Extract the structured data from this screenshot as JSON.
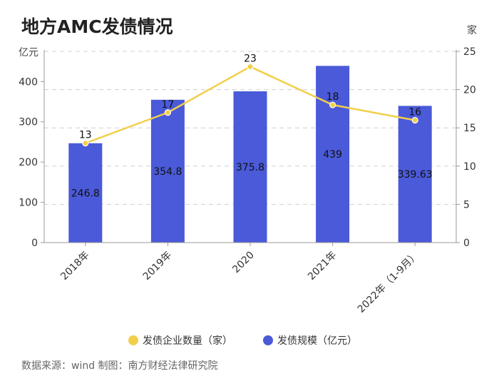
{
  "title": "地方AMC发债情况",
  "source": "数据来源：wind 制图：南方财经法律研究院",
  "chart_data": {
    "type": "bar",
    "categories": [
      "2018年",
      "2019年",
      "2020",
      "2021年",
      "2022年（1-9月）"
    ],
    "series": [
      {
        "name": "发债规模（亿元）",
        "type": "bar",
        "axis": "left",
        "values": [
          246.8,
          354.8,
          375.8,
          439,
          339.63
        ],
        "labels": [
          "246.8",
          "354.8",
          "375.8",
          "439",
          "339.63"
        ],
        "color": "#4a5ad8"
      },
      {
        "name": "发债企业数量（家）",
        "type": "line",
        "axis": "right",
        "values": [
          13,
          17,
          23,
          18,
          16
        ],
        "labels": [
          "13",
          "17",
          "23",
          "18",
          "16"
        ],
        "color": "#f2cf4a"
      }
    ],
    "yleft": {
      "unit": "亿元",
      "min": 0,
      "max": 475,
      "ticks": [
        0,
        100,
        200,
        300,
        400
      ]
    },
    "yright": {
      "unit": "家",
      "min": 0,
      "max": 25,
      "ticks": [
        0,
        5,
        10,
        15,
        20,
        25
      ]
    },
    "grid": true,
    "legend": "bottom-center"
  }
}
